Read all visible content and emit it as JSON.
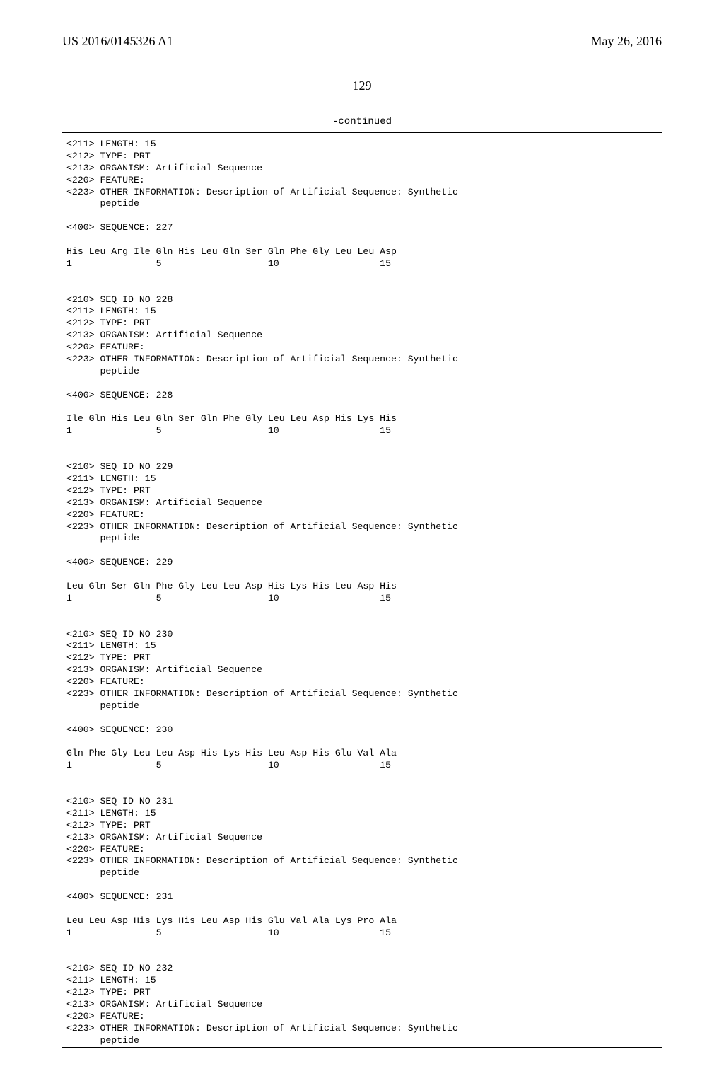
{
  "header": {
    "pub_number": "US 2016/0145326 A1",
    "pub_date": "May 26, 2016"
  },
  "page_number": "129",
  "continued_label": "-continued",
  "font": {
    "header_family": "Times New Roman",
    "mono_family": "Courier New",
    "header_size_pt": 14,
    "mono_size_pt": 10
  },
  "colors": {
    "text": "#000000",
    "background": "#ffffff",
    "rule": "#000000"
  },
  "blocks": [
    {
      "tags": [
        "<211> LENGTH: 15",
        "<212> TYPE: PRT",
        "<213> ORGANISM: Artificial Sequence",
        "<220> FEATURE:",
        "<223> OTHER INFORMATION: Description of Artificial Sequence: Synthetic",
        "      peptide"
      ],
      "seq_header": "<400> SEQUENCE: 227",
      "residues": "His Leu Arg Ile Gln His Leu Gln Ser Gln Phe Gly Leu Leu Asp",
      "numline": "1               5                   10                  15"
    },
    {
      "tags": [
        "<210> SEQ ID NO 228",
        "<211> LENGTH: 15",
        "<212> TYPE: PRT",
        "<213> ORGANISM: Artificial Sequence",
        "<220> FEATURE:",
        "<223> OTHER INFORMATION: Description of Artificial Sequence: Synthetic",
        "      peptide"
      ],
      "seq_header": "<400> SEQUENCE: 228",
      "residues": "Ile Gln His Leu Gln Ser Gln Phe Gly Leu Leu Asp His Lys His",
      "numline": "1               5                   10                  15"
    },
    {
      "tags": [
        "<210> SEQ ID NO 229",
        "<211> LENGTH: 15",
        "<212> TYPE: PRT",
        "<213> ORGANISM: Artificial Sequence",
        "<220> FEATURE:",
        "<223> OTHER INFORMATION: Description of Artificial Sequence: Synthetic",
        "      peptide"
      ],
      "seq_header": "<400> SEQUENCE: 229",
      "residues": "Leu Gln Ser Gln Phe Gly Leu Leu Asp His Lys His Leu Asp His",
      "numline": "1               5                   10                  15"
    },
    {
      "tags": [
        "<210> SEQ ID NO 230",
        "<211> LENGTH: 15",
        "<212> TYPE: PRT",
        "<213> ORGANISM: Artificial Sequence",
        "<220> FEATURE:",
        "<223> OTHER INFORMATION: Description of Artificial Sequence: Synthetic",
        "      peptide"
      ],
      "seq_header": "<400> SEQUENCE: 230",
      "residues": "Gln Phe Gly Leu Leu Asp His Lys His Leu Asp His Glu Val Ala",
      "numline": "1               5                   10                  15"
    },
    {
      "tags": [
        "<210> SEQ ID NO 231",
        "<211> LENGTH: 15",
        "<212> TYPE: PRT",
        "<213> ORGANISM: Artificial Sequence",
        "<220> FEATURE:",
        "<223> OTHER INFORMATION: Description of Artificial Sequence: Synthetic",
        "      peptide"
      ],
      "seq_header": "<400> SEQUENCE: 231",
      "residues": "Leu Leu Asp His Lys His Leu Asp His Glu Val Ala Lys Pro Ala",
      "numline": "1               5                   10                  15"
    },
    {
      "tags": [
        "<210> SEQ ID NO 232",
        "<211> LENGTH: 15",
        "<212> TYPE: PRT",
        "<213> ORGANISM: Artificial Sequence",
        "<220> FEATURE:",
        "<223> OTHER INFORMATION: Description of Artificial Sequence: Synthetic",
        "      peptide"
      ],
      "seq_header": "",
      "residues": "",
      "numline": ""
    }
  ]
}
